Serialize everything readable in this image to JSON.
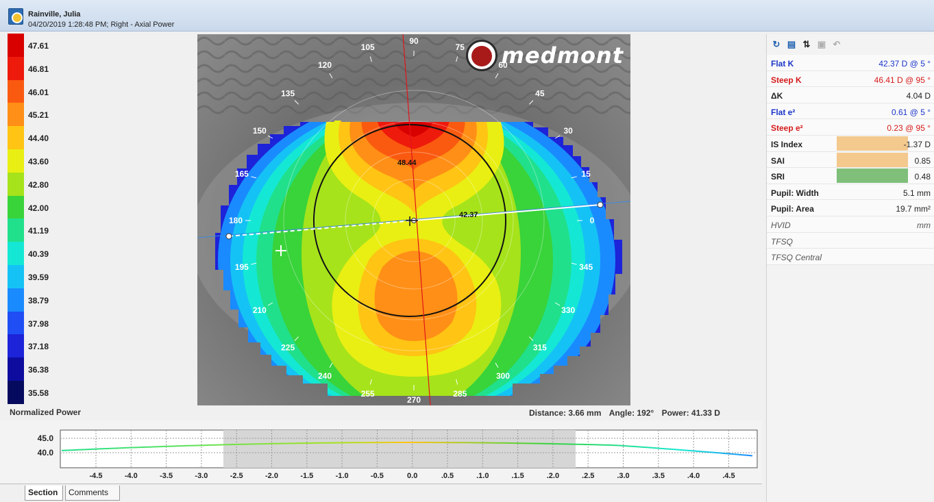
{
  "header": {
    "patient_name": "Rainville, Julia",
    "exam_info": "04/20/2019 1:28:48 PM; Right - Axial Power"
  },
  "legend": {
    "items": [
      {
        "value": "47.61",
        "color": "#d90000"
      },
      {
        "value": "46.81",
        "color": "#ee1a0c"
      },
      {
        "value": "46.01",
        "color": "#fa5a10"
      },
      {
        "value": "45.21",
        "color": "#ff8f16"
      },
      {
        "value": "44.40",
        "color": "#ffc414"
      },
      {
        "value": "43.60",
        "color": "#e9ef12"
      },
      {
        "value": "42.80",
        "color": "#a6e31b"
      },
      {
        "value": "42.00",
        "color": "#39d33a"
      },
      {
        "value": "41.19",
        "color": "#21e08c"
      },
      {
        "value": "40.39",
        "color": "#14e8d4"
      },
      {
        "value": "39.59",
        "color": "#15c2f5"
      },
      {
        "value": "38.79",
        "color": "#1a8bff"
      },
      {
        "value": "37.98",
        "color": "#1f4ef5"
      },
      {
        "value": "37.18",
        "color": "#1d23d8"
      },
      {
        "value": "36.38",
        "color": "#0d0c9e"
      },
      {
        "value": "35.58",
        "color": "#050a5e"
      }
    ],
    "scale_label": "Normalized Power"
  },
  "map": {
    "logo_text": "medmont",
    "map_labels": [
      "48.44",
      "42.37"
    ],
    "angles": [
      "0",
      "15",
      "30",
      "45",
      "60",
      "75",
      "90",
      "105",
      "120",
      "135",
      "150",
      "165",
      "180",
      "195",
      "210",
      "225",
      "240",
      "255",
      "270",
      "285",
      "300",
      "315",
      "330",
      "345"
    ]
  },
  "readout": {
    "distance": "Distance: 3.66 mm",
    "angle": "Angle: 192°",
    "power": "Power: 41.33 D"
  },
  "panel": {
    "toolbar": {
      "icons": [
        "refresh-icon",
        "chart-options-icon",
        "sort-icon",
        "save-icon",
        "undo-icon"
      ]
    },
    "params": [
      {
        "label": "Flat K",
        "value": "42.37 D @   5 °",
        "style": "blue"
      },
      {
        "label": "Steep K",
        "value": "46.41 D @  95 °",
        "style": "red"
      },
      {
        "label": "ΔK",
        "value": "4.04 D",
        "style": "plain"
      },
      {
        "label": "Flat e²",
        "value": "0.61 @   5 °",
        "style": "blue"
      },
      {
        "label": "Steep e²",
        "value": "0.23 @  95 °",
        "style": "red"
      },
      {
        "label": "IS Index",
        "value": "-1.37 D",
        "style": "plain",
        "bg": "#f3c98e"
      },
      {
        "label": "SAI",
        "value": "0.85",
        "style": "plain",
        "bg": "#f3c98e"
      },
      {
        "label": "SRI",
        "value": "0.48",
        "style": "plain",
        "bg": "#7fbf7a"
      },
      {
        "label": "Pupil: Width",
        "value": "5.1 mm",
        "style": "plain"
      },
      {
        "label": "Pupil: Area",
        "value": "19.7 mm²",
        "style": "plain"
      },
      {
        "label": "HVID",
        "value": "mm",
        "style": "italic"
      },
      {
        "label": "TFSQ",
        "value": "",
        "style": "italic"
      },
      {
        "label": "TFSQ Central",
        "value": "",
        "style": "italic"
      }
    ]
  },
  "profile": {
    "y_ticks": [
      "45.0",
      "40.0"
    ],
    "x_ticks": [
      "-4.5",
      "-4.0",
      "-3.5",
      "-3.0",
      "-2.5",
      "-2.0",
      "-1.5",
      "-1.0",
      "-0.5",
      "0.0",
      ".0.5",
      ".1.0",
      ".1.5",
      ".2.0",
      ".2.5",
      ".3.0",
      ".3.5",
      ".4.0",
      ".4.5"
    ]
  },
  "tabs": {
    "section": "Section",
    "comments": "Comments"
  }
}
